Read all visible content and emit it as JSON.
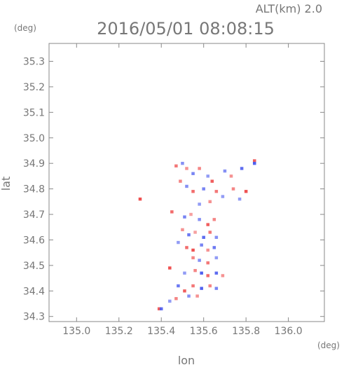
{
  "header": {
    "altitude": "ALT(km) 2.0",
    "datetime": "2016/05/01 08:08:15"
  },
  "chart_data": {
    "type": "heatmap",
    "xlabel": "lon",
    "ylabel": "lat",
    "x_unit": "(deg)",
    "y_unit": "(deg)",
    "xlim": [
      134.87,
      136.17
    ],
    "ylim": [
      34.28,
      35.37
    ],
    "x_ticks": [
      135.0,
      135.2,
      135.4,
      135.6,
      135.8,
      136.0
    ],
    "x_tick_labels": [
      "135.0",
      "135.2",
      "135.4",
      "135.6",
      "135.8",
      "136.0"
    ],
    "y_ticks": [
      34.3,
      34.4,
      34.5,
      34.6,
      34.7,
      34.8,
      34.9,
      35.0,
      35.1,
      35.2,
      35.3
    ],
    "y_tick_labels": [
      "34.3",
      "34.4",
      "34.5",
      "34.6",
      "34.7",
      "34.8",
      "34.9",
      "35.0",
      "35.1",
      "35.2",
      "35.3"
    ],
    "grid": false,
    "colors": {
      "positive": "#ee4444",
      "negative": "#4455ee",
      "axis": "#888888",
      "text": "#777777"
    },
    "cells": [
      {
        "lon": 135.47,
        "lat": 34.89,
        "v": 0.6
      },
      {
        "lon": 135.5,
        "lat": 34.9,
        "v": -0.5
      },
      {
        "lon": 135.52,
        "lat": 34.88,
        "v": 0.4
      },
      {
        "lon": 135.55,
        "lat": 34.86,
        "v": -0.6
      },
      {
        "lon": 135.58,
        "lat": 34.88,
        "v": 0.5
      },
      {
        "lon": 135.62,
        "lat": 34.85,
        "v": -0.4
      },
      {
        "lon": 135.7,
        "lat": 34.87,
        "v": -0.5
      },
      {
        "lon": 135.73,
        "lat": 34.85,
        "v": 0.4
      },
      {
        "lon": 135.78,
        "lat": 34.88,
        "v": -0.8
      },
      {
        "lon": 135.84,
        "lat": 34.91,
        "v": 0.8
      },
      {
        "lon": 135.84,
        "lat": 34.9,
        "v": -0.9
      },
      {
        "lon": 135.49,
        "lat": 34.83,
        "v": 0.5
      },
      {
        "lon": 135.52,
        "lat": 34.81,
        "v": -0.5
      },
      {
        "lon": 135.55,
        "lat": 34.79,
        "v": 0.7
      },
      {
        "lon": 135.6,
        "lat": 34.8,
        "v": -0.6
      },
      {
        "lon": 135.64,
        "lat": 34.83,
        "v": 0.8
      },
      {
        "lon": 135.66,
        "lat": 34.79,
        "v": 0.6
      },
      {
        "lon": 135.69,
        "lat": 34.77,
        "v": -0.4
      },
      {
        "lon": 135.74,
        "lat": 34.8,
        "v": 0.5
      },
      {
        "lon": 135.77,
        "lat": 34.76,
        "v": -0.4
      },
      {
        "lon": 135.8,
        "lat": 34.79,
        "v": 0.9
      },
      {
        "lon": 135.58,
        "lat": 34.74,
        "v": -0.4
      },
      {
        "lon": 135.63,
        "lat": 34.75,
        "v": 0.4
      },
      {
        "lon": 135.3,
        "lat": 34.76,
        "v": 0.9
      },
      {
        "lon": 135.45,
        "lat": 34.71,
        "v": 0.7
      },
      {
        "lon": 135.51,
        "lat": 34.69,
        "v": -0.6
      },
      {
        "lon": 135.54,
        "lat": 34.7,
        "v": 0.3
      },
      {
        "lon": 135.58,
        "lat": 34.68,
        "v": -0.5
      },
      {
        "lon": 135.62,
        "lat": 34.66,
        "v": 0.8
      },
      {
        "lon": 135.65,
        "lat": 34.68,
        "v": 0.5
      },
      {
        "lon": 135.5,
        "lat": 34.64,
        "v": 0.4
      },
      {
        "lon": 135.53,
        "lat": 34.62,
        "v": -0.7
      },
      {
        "lon": 135.56,
        "lat": 34.63,
        "v": 0.3
      },
      {
        "lon": 135.6,
        "lat": 34.61,
        "v": -0.8
      },
      {
        "lon": 135.63,
        "lat": 34.63,
        "v": 0.6
      },
      {
        "lon": 135.66,
        "lat": 34.61,
        "v": -0.5
      },
      {
        "lon": 135.48,
        "lat": 34.59,
        "v": -0.4
      },
      {
        "lon": 135.52,
        "lat": 34.57,
        "v": 0.7
      },
      {
        "lon": 135.55,
        "lat": 34.56,
        "v": 0.9
      },
      {
        "lon": 135.59,
        "lat": 34.58,
        "v": -0.6
      },
      {
        "lon": 135.62,
        "lat": 34.56,
        "v": 0.4
      },
      {
        "lon": 135.65,
        "lat": 34.57,
        "v": -0.7
      },
      {
        "lon": 135.55,
        "lat": 34.53,
        "v": 0.5
      },
      {
        "lon": 135.58,
        "lat": 34.52,
        "v": -0.5
      },
      {
        "lon": 135.62,
        "lat": 34.51,
        "v": 0.6
      },
      {
        "lon": 135.66,
        "lat": 34.53,
        "v": -0.4
      },
      {
        "lon": 135.44,
        "lat": 34.49,
        "v": 0.9
      },
      {
        "lon": 135.51,
        "lat": 34.47,
        "v": -0.4
      },
      {
        "lon": 135.56,
        "lat": 34.48,
        "v": 0.5
      },
      {
        "lon": 135.59,
        "lat": 34.47,
        "v": -0.9
      },
      {
        "lon": 135.62,
        "lat": 34.46,
        "v": 0.7
      },
      {
        "lon": 135.66,
        "lat": 34.47,
        "v": -0.8
      },
      {
        "lon": 135.69,
        "lat": 34.46,
        "v": 0.4
      },
      {
        "lon": 135.48,
        "lat": 34.42,
        "v": -0.7
      },
      {
        "lon": 135.51,
        "lat": 34.4,
        "v": 0.8
      },
      {
        "lon": 135.55,
        "lat": 34.42,
        "v": 0.6
      },
      {
        "lon": 135.59,
        "lat": 34.41,
        "v": -0.9
      },
      {
        "lon": 135.63,
        "lat": 34.42,
        "v": 0.5
      },
      {
        "lon": 135.66,
        "lat": 34.41,
        "v": -0.6
      },
      {
        "lon": 135.53,
        "lat": 34.38,
        "v": -0.5
      },
      {
        "lon": 135.57,
        "lat": 34.38,
        "v": 0.4
      },
      {
        "lon": 135.44,
        "lat": 34.36,
        "v": -0.4
      },
      {
        "lon": 135.47,
        "lat": 34.37,
        "v": 0.5
      },
      {
        "lon": 135.39,
        "lat": 34.33,
        "v": 0.8
      },
      {
        "lon": 135.4,
        "lat": 34.33,
        "v": -0.8
      }
    ]
  }
}
